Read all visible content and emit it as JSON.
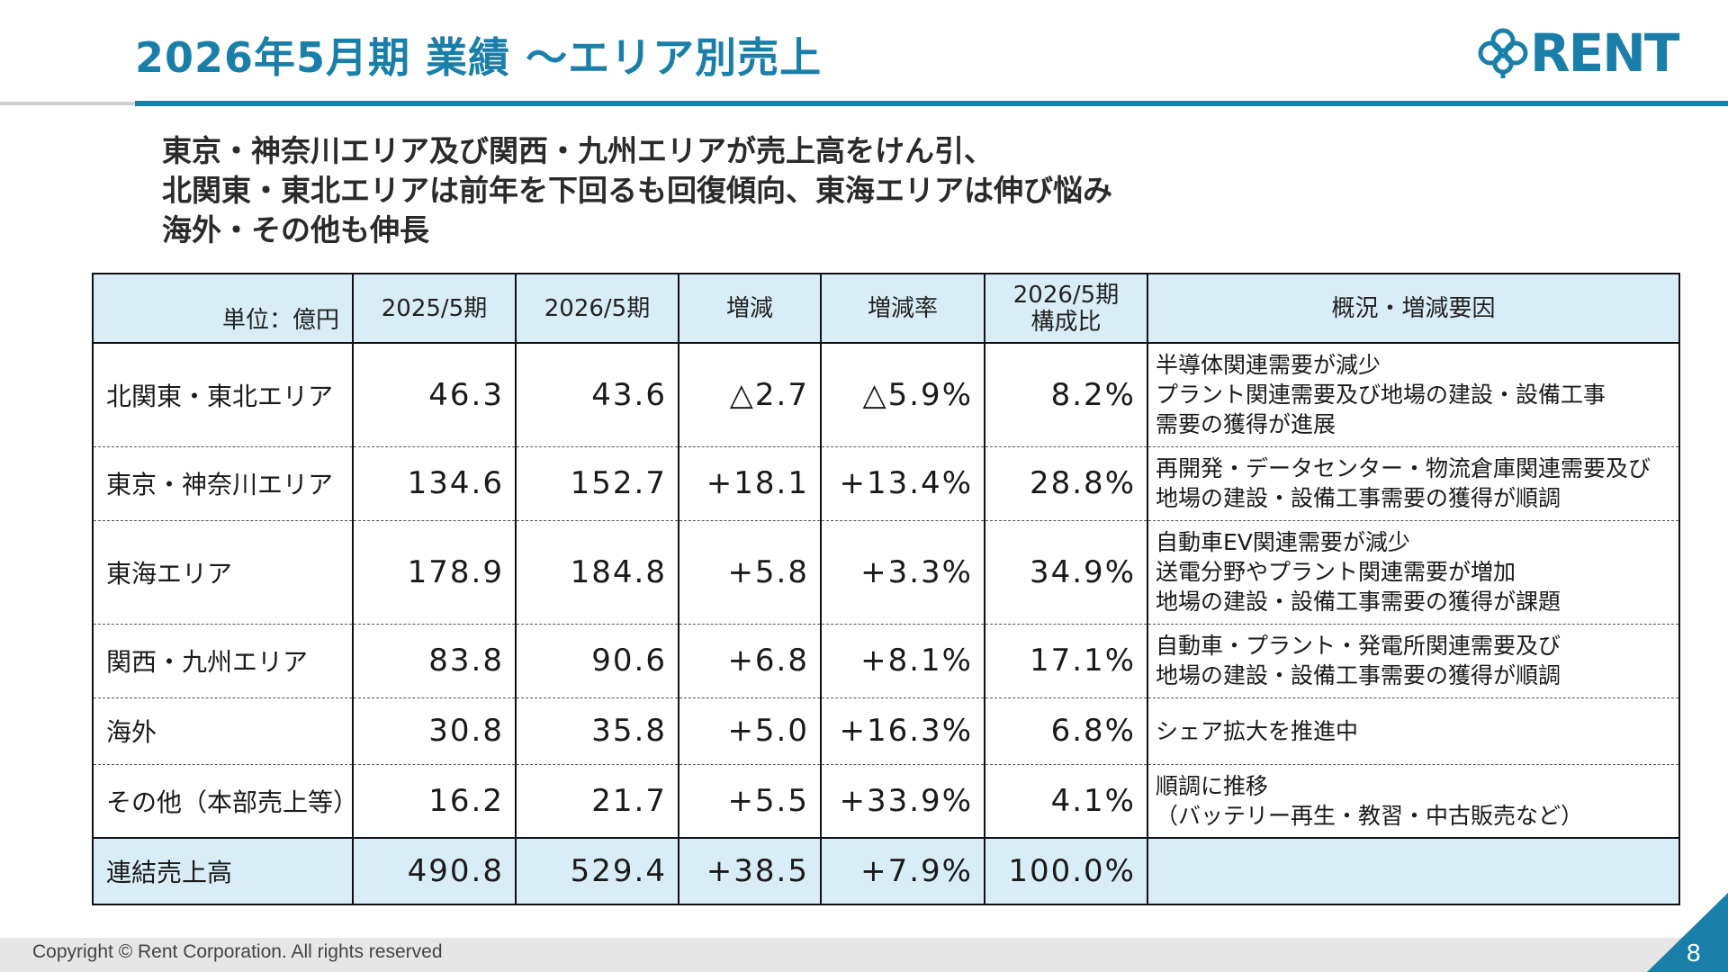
{
  "header": {
    "title": "2026年5月期 業績 ～エリア別売上",
    "logo_text": "RENT",
    "logo_icon": "clover-icon",
    "accent_color": "#1a7fa8"
  },
  "summary": {
    "lines": [
      "東京・神奈川エリア及び関西・九州エリアが売上高をけん引、",
      "北関東・東北エリアは前年を下回るも回復傾向、東海エリアは伸び悩み",
      "海外・その他も伸長"
    ]
  },
  "table": {
    "unit_label": "単位：億円",
    "columns": [
      "2025/5期",
      "2026/5期",
      "増減",
      "増減率",
      "2026/5期",
      "構成比",
      "概況・増減要因"
    ],
    "rows": [
      {
        "area": "北関東・東北エリア",
        "fy2025": "46.3",
        "fy2026": "43.6",
        "change": "△2.7",
        "rate": "△5.9%",
        "share": "8.2%",
        "notes": [
          "半導体関連需要が減少",
          "プラント関連需要及び地場の建設・設備工事",
          "需要の獲得が進展"
        ]
      },
      {
        "area": "東京・神奈川エリア",
        "fy2025": "134.6",
        "fy2026": "152.7",
        "change": "+18.1",
        "rate": "+13.4%",
        "share": "28.8%",
        "notes": [
          "再開発・データセンター・物流倉庫関連需要及び",
          "地場の建設・設備工事需要の獲得が順調"
        ]
      },
      {
        "area": "東海エリア",
        "fy2025": "178.9",
        "fy2026": "184.8",
        "change": "+5.8",
        "rate": "+3.3%",
        "share": "34.9%",
        "notes": [
          "自動車EV関連需要が減少",
          "送電分野やプラント関連需要が増加",
          "地場の建設・設備工事需要の獲得が課題"
        ]
      },
      {
        "area": "関西・九州エリア",
        "fy2025": "83.8",
        "fy2026": "90.6",
        "change": "+6.8",
        "rate": "+8.1%",
        "share": "17.1%",
        "notes": [
          "自動車・プラント・発電所関連需要及び",
          "地場の建設・設備工事需要の獲得が順調"
        ]
      },
      {
        "area": "海外",
        "fy2025": "30.8",
        "fy2026": "35.8",
        "change": "+5.0",
        "rate": "+16.3%",
        "share": "6.8%",
        "notes": [
          "シェア拡大を推進中"
        ]
      },
      {
        "area": "その他（本部売上等）",
        "fy2025": "16.2",
        "fy2026": "21.7",
        "change": "+5.5",
        "rate": "+33.9%",
        "share": "4.1%",
        "notes": [
          "順調に推移",
          "（バッテリー再生・教習・中古販売など）"
        ]
      }
    ],
    "total": {
      "area": "連結売上高",
      "fy2025": "490.8",
      "fy2026": "529.4",
      "change": "+38.5",
      "rate": "+7.9%",
      "share": "100.0%"
    }
  },
  "footer": {
    "copyright": "Copyright © Rent Corporation. All rights reserved",
    "page_number": "8"
  }
}
